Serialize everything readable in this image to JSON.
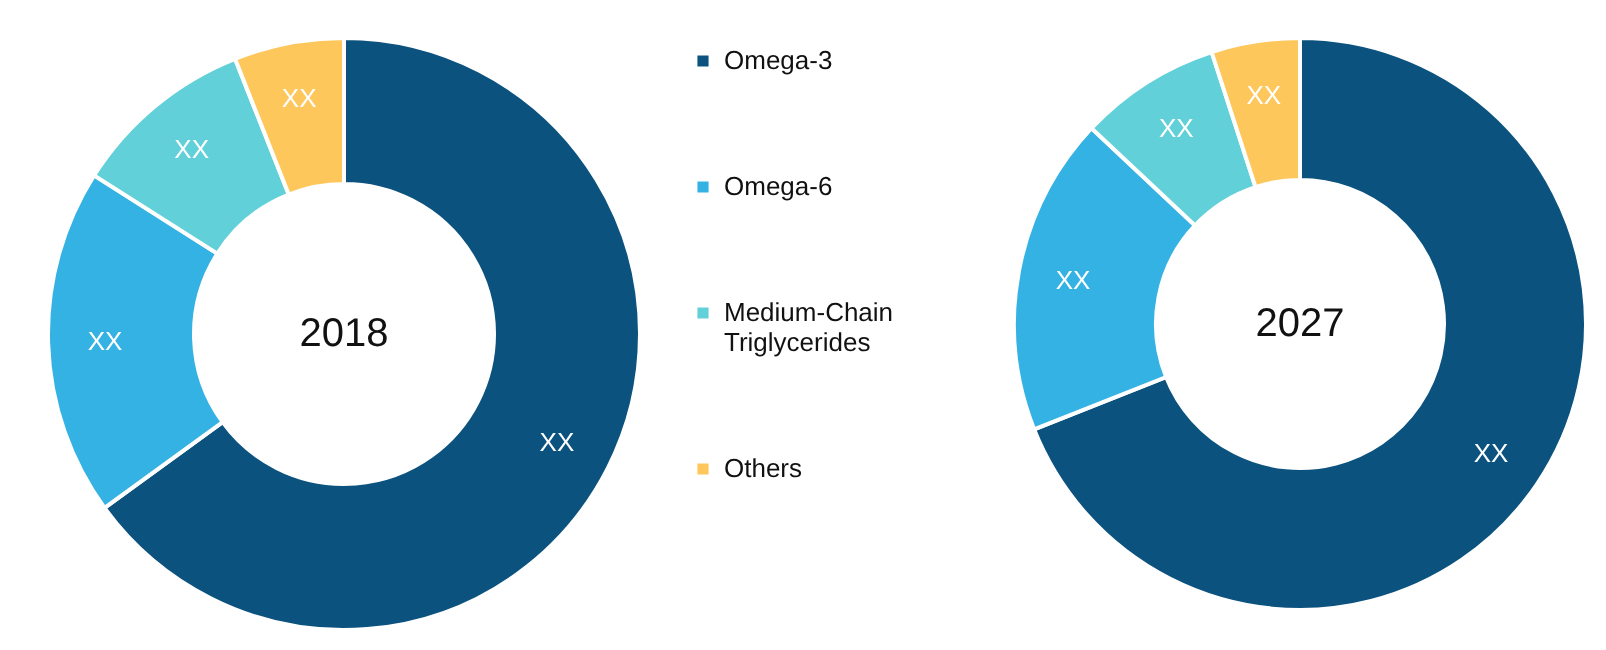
{
  "chart_data": [
    {
      "type": "donut",
      "title": "2018",
      "categories": [
        "Omega-3",
        "Omega-6",
        "Medium-Chain Triglycerides",
        "Others"
      ],
      "values": [
        65,
        19,
        10,
        6
      ],
      "colors": [
        "#0b527e",
        "#35b2e4",
        "#62d0d9",
        "#fec75c"
      ],
      "value_labels": [
        "XX",
        "XX",
        "XX",
        "XX"
      ],
      "legend": "right"
    },
    {
      "type": "donut",
      "title": "2027",
      "categories": [
        null,
        null,
        null,
        null
      ],
      "values": [
        69,
        18,
        8,
        5
      ],
      "colors": [
        "#0b527e",
        "#35b2e4",
        "#62d0d9",
        "#fec75c"
      ],
      "value_labels": [
        "XX",
        "XX",
        "XX",
        "XX"
      ]
    }
  ]
}
